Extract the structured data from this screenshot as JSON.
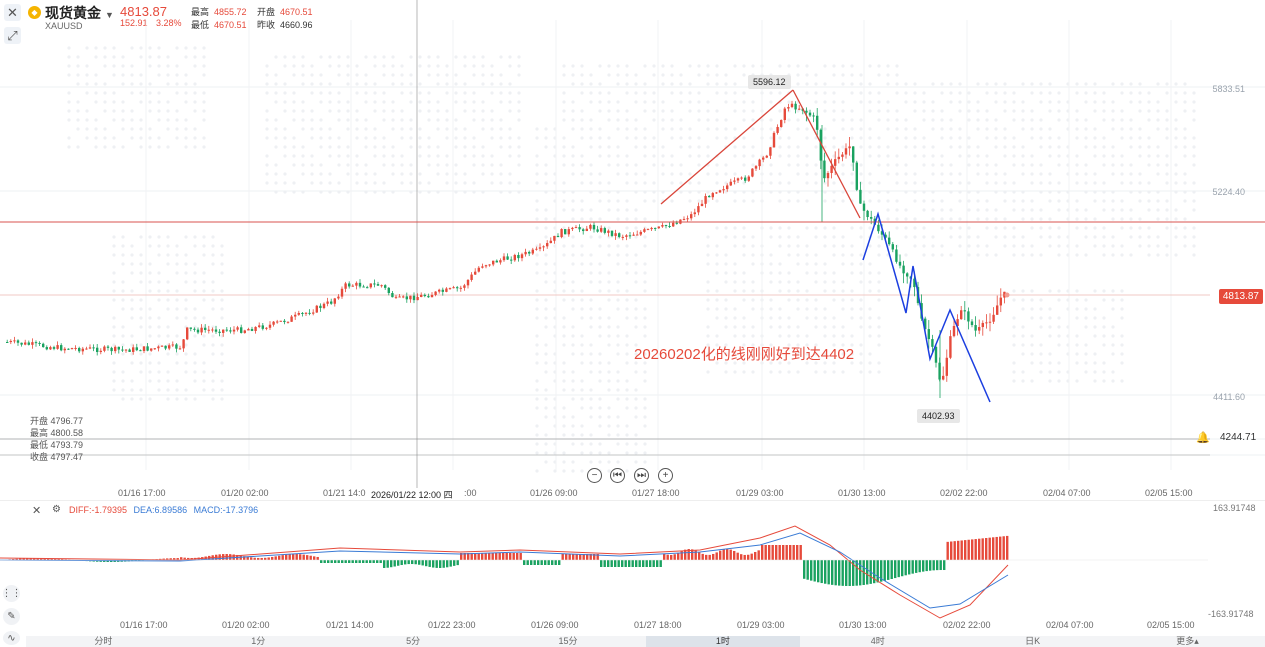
{
  "header": {
    "name": "现货黄金",
    "code": "XAUUSD",
    "price": "4813.87",
    "change": "152.91",
    "change_pct": "3.28%",
    "high_label": "最高",
    "high_value": "4855.72",
    "low_label": "最低",
    "low_value": "4670.51",
    "open_label": "开盘",
    "open_value": "4670.51",
    "prev_label": "昨收",
    "prev_value": "4660.96"
  },
  "ohlc_overlay": {
    "open": "开盘 4796.77",
    "high": "最高 4800.58",
    "low": "最低 4793.79",
    "close": "收盘 4797.47"
  },
  "price_axis": [
    "5833.51",
    "5224.40",
    "4411.60"
  ],
  "current_price_tag": "4813.87",
  "peak_label": "5596.12",
  "trough_label": "4402.93",
  "alert_value": "4244.71",
  "annotation": "20260202化的线刚刚好到达4402",
  "cursor_time": "2026/01/22 12:00 四",
  "x_axis_main": [
    "01/16 17:00",
    "01/20 02:00",
    "01/21 14:0",
    ":00",
    "01/26 09:00",
    "01/27 18:00",
    "01/29 03:00",
    "01/30 13:00",
    "02/02 22:00",
    "02/04 07:00",
    "02/05 15:00"
  ],
  "x_axis_sub": [
    "01/16 17:00",
    "01/20 02:00",
    "01/21 14:00",
    "01/22 23:00",
    "01/26 09:00",
    "01/27 18:00",
    "01/29 03:00",
    "01/30 13:00",
    "02/02 22:00",
    "02/04 07:00",
    "02/05 15:00"
  ],
  "macd": {
    "diff": "DIFF:-1.79395",
    "dea": "DEA:6.89586",
    "macd": "MACD:-17.3796",
    "top": "163.91748",
    "bottom": "-163.91748"
  },
  "timeframes": [
    "分时",
    "1分",
    "5分",
    "15分",
    "1时",
    "4时",
    "日K",
    "更多▴"
  ],
  "active_timeframe": "1时",
  "colors": {
    "up": "#e64a3b",
    "down": "#1aa260",
    "drawing_blue": "#1c3fe0",
    "diff": "#e64a3b",
    "dea": "#3a7bd5"
  },
  "icons": [
    "close-icon",
    "draw-tool-icon",
    "gold-coin-icon",
    "bell-icon",
    "settings-icon",
    "pencil-icon",
    "indicator-icon"
  ]
}
